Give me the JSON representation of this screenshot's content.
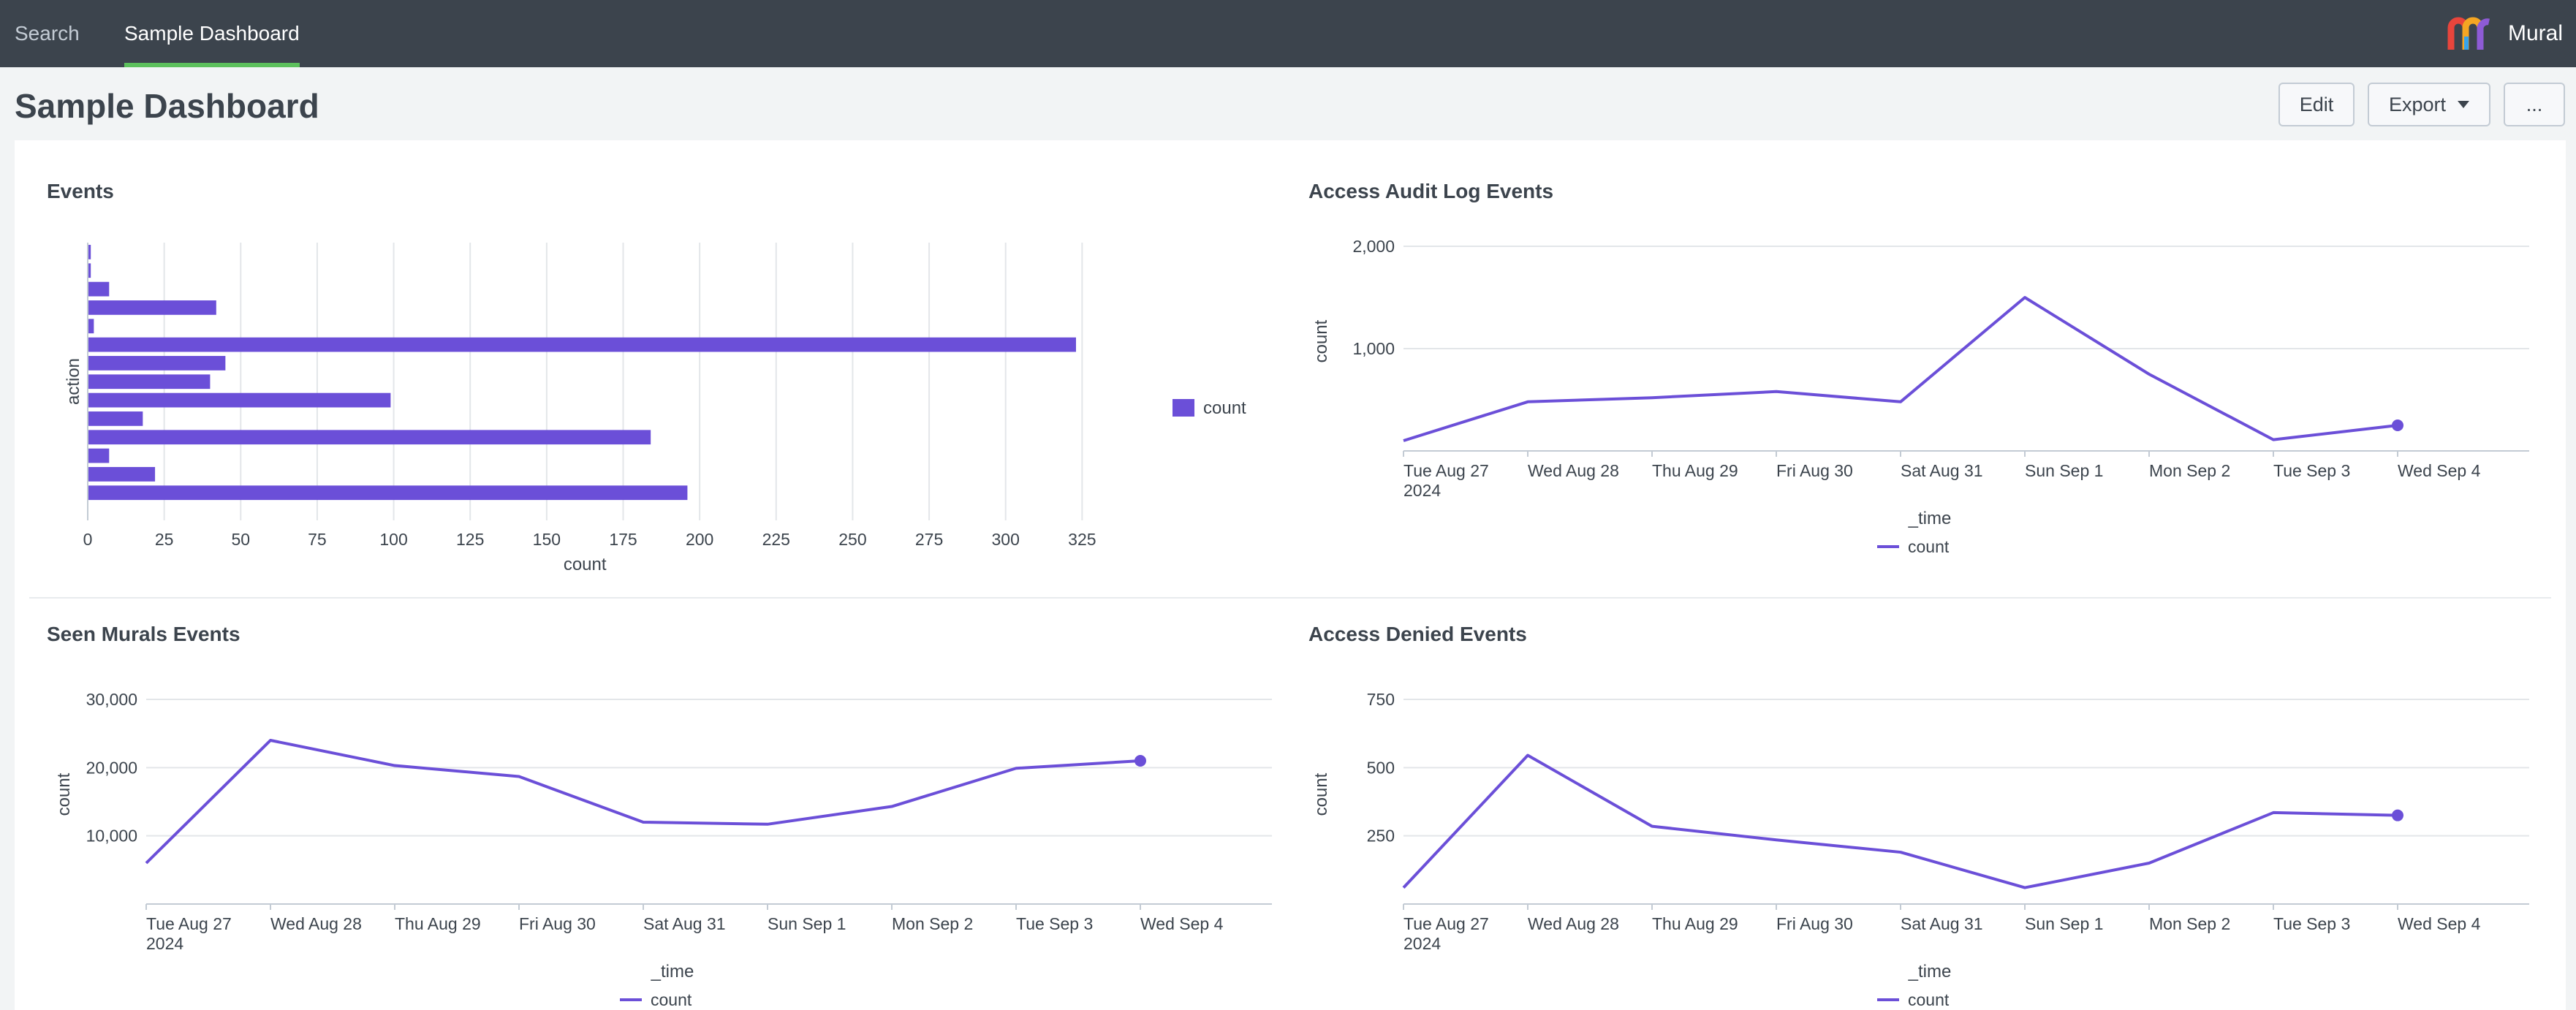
{
  "nav": {
    "tabs": [
      {
        "label": "Search",
        "active": false
      },
      {
        "label": "Sample Dashboard",
        "active": true
      }
    ],
    "brand": "Mural"
  },
  "header": {
    "title": "Sample Dashboard",
    "edit_label": "Edit",
    "export_label": "Export",
    "more_label": "..."
  },
  "colors": {
    "series": "#6b4fd8",
    "nav_bg": "#3c444d",
    "active_tab_underline": "#5cc05c",
    "logo": [
      "#e8453c",
      "#f5a623",
      "#36a3eb",
      "#8e5bd6"
    ]
  },
  "chart_data": [
    {
      "id": "events",
      "type": "bar",
      "orientation": "horizontal",
      "title": "Events",
      "xlabel": "count",
      "ylabel": "action",
      "xlim": [
        0,
        350
      ],
      "xticks": [
        0,
        25,
        50,
        75,
        100,
        125,
        150,
        175,
        200,
        225,
        250,
        275,
        300,
        325
      ],
      "categories": [
        "",
        "",
        "",
        "",
        "",
        "",
        "",
        "",
        "",
        "",
        "",
        "",
        "",
        "",
        ""
      ],
      "values": [
        1,
        1,
        7,
        42,
        2,
        323,
        45,
        40,
        99,
        18,
        184,
        7,
        22,
        196,
        0
      ],
      "legend": [
        "count"
      ],
      "legend_position": "right"
    },
    {
      "id": "access-audit",
      "type": "line",
      "title": "Access Audit Log Events",
      "xlabel": "_time",
      "ylabel": "count",
      "ylim": [
        0,
        2000
      ],
      "yticks": [
        1000,
        2000
      ],
      "ytick_labels": [
        "1,000",
        "2,000"
      ],
      "x": [
        "Tue Aug 27",
        "Wed Aug 28",
        "Thu Aug 29",
        "Fri Aug 30",
        "Sat Aug 31",
        "Sun Sep 1",
        "Mon Sep 2",
        "Tue Sep 3",
        "Wed Sep 4"
      ],
      "x_sub": "2024",
      "series": [
        {
          "name": "count",
          "values": [
            100,
            480,
            520,
            580,
            480,
            1500,
            750,
            110,
            250
          ]
        }
      ],
      "legend_position": "bottom"
    },
    {
      "id": "seen-murals",
      "type": "line",
      "title": "Seen Murals Events",
      "xlabel": "_time",
      "ylabel": "count",
      "ylim": [
        0,
        30000
      ],
      "yticks": [
        10000,
        20000,
        30000
      ],
      "ytick_labels": [
        "10,000",
        "20,000",
        "30,000"
      ],
      "x": [
        "Tue Aug 27",
        "Wed Aug 28",
        "Thu Aug 29",
        "Fri Aug 30",
        "Sat Aug 31",
        "Sun Sep 1",
        "Mon Sep 2",
        "Tue Sep 3",
        "Wed Sep 4"
      ],
      "x_sub": "2024",
      "series": [
        {
          "name": "count",
          "values": [
            6000,
            24000,
            20300,
            18700,
            12000,
            11700,
            14300,
            19900,
            21000
          ]
        }
      ],
      "legend_position": "bottom"
    },
    {
      "id": "access-denied",
      "type": "line",
      "title": "Access Denied Events",
      "xlabel": "_time",
      "ylabel": "count",
      "ylim": [
        0,
        750
      ],
      "yticks": [
        250,
        500,
        750
      ],
      "ytick_labels": [
        "250",
        "500",
        "750"
      ],
      "x": [
        "Tue Aug 27",
        "Wed Aug 28",
        "Thu Aug 29",
        "Fri Aug 30",
        "Sat Aug 31",
        "Sun Sep 1",
        "Mon Sep 2",
        "Tue Sep 3",
        "Wed Sep 4"
      ],
      "x_sub": "2024",
      "series": [
        {
          "name": "count",
          "values": [
            60,
            545,
            285,
            235,
            190,
            60,
            150,
            335,
            325
          ]
        }
      ],
      "legend_position": "bottom"
    }
  ]
}
